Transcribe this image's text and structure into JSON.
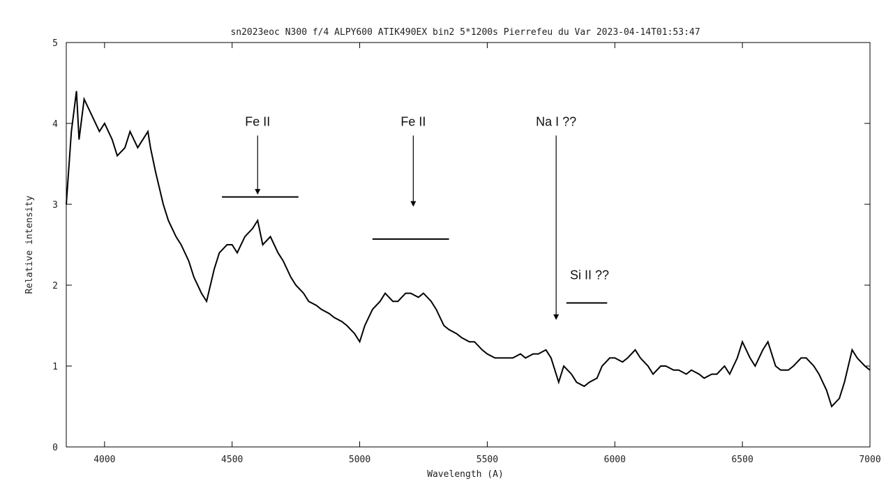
{
  "chart_data": {
    "type": "line",
    "title": "sn2023eoc  N300 f/4 ALPY600 ATIK490EX bin2 5*1200s Pierrefeu du Var 2023-04-14T01:53:47",
    "xlabel": "Wavelength (A)",
    "ylabel": "Relative intensity",
    "xlim": [
      3850,
      7000
    ],
    "ylim": [
      0,
      5
    ],
    "xticks": [
      4000,
      4500,
      5000,
      5500,
      6000,
      6500,
      7000
    ],
    "yticks": [
      0,
      1,
      2,
      3,
      4,
      5
    ],
    "grid": false,
    "series": [
      {
        "x": [
          3850,
          3870,
          3890,
          3900,
          3920,
          3950,
          3980,
          4000,
          4030,
          4050,
          4080,
          4100,
          4130,
          4150,
          4170,
          4180,
          4200,
          4230,
          4250,
          4280,
          4300,
          4330,
          4350,
          4380,
          4400,
          4430,
          4450,
          4480,
          4500,
          4520,
          4550,
          4580,
          4600,
          4620,
          4650,
          4680,
          4700,
          4730,
          4750,
          4780,
          4800,
          4830,
          4850,
          4880,
          4900,
          4930,
          4950,
          4980,
          5000,
          5020,
          5050,
          5080,
          5100,
          5130,
          5150,
          5180,
          5200,
          5230,
          5250,
          5280,
          5300,
          5330,
          5350,
          5380,
          5400,
          5430,
          5450,
          5480,
          5500,
          5530,
          5550,
          5580,
          5600,
          5630,
          5650,
          5680,
          5700,
          5730,
          5750,
          5780,
          5800,
          5830,
          5850,
          5880,
          5900,
          5930,
          5950,
          5980,
          6000,
          6030,
          6050,
          6080,
          6100,
          6130,
          6150,
          6180,
          6200,
          6230,
          6250,
          6280,
          6300,
          6330,
          6350,
          6380,
          6400,
          6430,
          6450,
          6480,
          6500,
          6530,
          6550,
          6580,
          6600,
          6630,
          6650,
          6680,
          6700,
          6730,
          6750,
          6780,
          6800,
          6830,
          6850,
          6880,
          6900,
          6930,
          6950,
          6980,
          7000
        ],
        "y": [
          3.0,
          3.9,
          4.4,
          3.8,
          4.3,
          4.1,
          3.9,
          4.0,
          3.8,
          3.6,
          3.7,
          3.9,
          3.7,
          3.8,
          3.9,
          3.7,
          3.4,
          3.0,
          2.8,
          2.6,
          2.5,
          2.3,
          2.1,
          1.9,
          1.8,
          2.2,
          2.4,
          2.5,
          2.5,
          2.4,
          2.6,
          2.7,
          2.8,
          2.5,
          2.6,
          2.4,
          2.3,
          2.1,
          2.0,
          1.9,
          1.8,
          1.75,
          1.7,
          1.65,
          1.6,
          1.55,
          1.5,
          1.4,
          1.3,
          1.5,
          1.7,
          1.8,
          1.9,
          1.8,
          1.8,
          1.9,
          1.9,
          1.85,
          1.9,
          1.8,
          1.7,
          1.5,
          1.45,
          1.4,
          1.35,
          1.3,
          1.3,
          1.2,
          1.15,
          1.1,
          1.1,
          1.1,
          1.1,
          1.15,
          1.1,
          1.15,
          1.15,
          1.2,
          1.1,
          0.8,
          1.0,
          0.9,
          0.8,
          0.75,
          0.8,
          0.85,
          1.0,
          1.1,
          1.1,
          1.05,
          1.1,
          1.2,
          1.1,
          1.0,
          0.9,
          1.0,
          1.0,
          0.95,
          0.95,
          0.9,
          0.95,
          0.9,
          0.85,
          0.9,
          0.9,
          1.0,
          0.9,
          1.1,
          1.3,
          1.1,
          1.0,
          1.2,
          1.3,
          1.0,
          0.95,
          0.95,
          1.0,
          1.1,
          1.1,
          1.0,
          0.9,
          0.7,
          0.5,
          0.6,
          0.8,
          1.2,
          1.1,
          1.0,
          0.95
        ]
      }
    ],
    "annotations": [
      {
        "text": "Fe II",
        "arrow_x": 4600,
        "arrow_from_y": 3.85,
        "arrow_to_y": 3.12,
        "bar_x1": 4460,
        "bar_x2": 4760,
        "bar_y": 3.09
      },
      {
        "text": "Fe II",
        "arrow_x": 5210,
        "arrow_from_y": 3.85,
        "arrow_to_y": 2.97,
        "bar_x1": 5050,
        "bar_x2": 5350,
        "bar_y": 2.57
      },
      {
        "text": "Na I ??",
        "arrow_x": 5770,
        "arrow_from_y": 3.85,
        "arrow_to_y": 1.57,
        "bar_x1": null,
        "bar_x2": null,
        "bar_y": null
      },
      {
        "text": "Si II ??",
        "arrow_x": null,
        "arrow_from_y": null,
        "arrow_to_y": null,
        "bar_x1": 5810,
        "bar_x2": 5970,
        "bar_y": 1.78
      }
    ]
  }
}
